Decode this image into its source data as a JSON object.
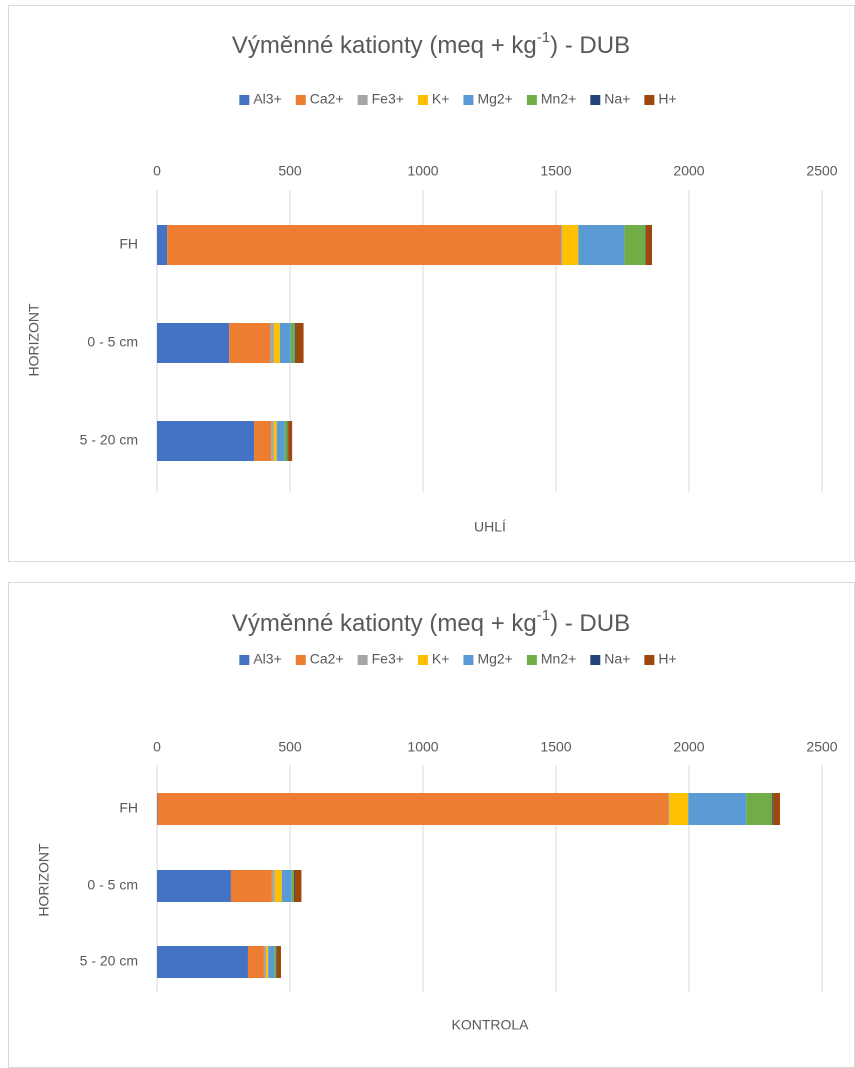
{
  "chart_data": [
    {
      "type": "stacked-bar-horizontal",
      "title": [
        "Výměnné kationty (meq + kg",
        "-1",
        ") - DUB"
      ],
      "x_label": "UHLÍ",
      "y_label": "HORIZONT",
      "categories": [
        "FH",
        "0 - 5 cm",
        "5 - 20 cm"
      ],
      "xlim": [
        0,
        2500
      ],
      "xticks": [
        0,
        500,
        1000,
        1500,
        2000,
        2500
      ],
      "grid": true,
      "legend": "top",
      "series": [
        {
          "name": "Al3+",
          "color": "#4472c4",
          "values": [
            38,
            271,
            365
          ]
        },
        {
          "name": "Ca2+",
          "color": "#ed7d31",
          "values": [
            1481,
            154,
            64
          ]
        },
        {
          "name": "Fe3+",
          "color": "#a5a5a5",
          "values": [
            5,
            15,
            10
          ]
        },
        {
          "name": "K+",
          "color": "#ffc000",
          "values": [
            60,
            22,
            11
          ]
        },
        {
          "name": "Mg2+",
          "color": "#5b9bd5",
          "values": [
            173,
            41,
            30
          ]
        },
        {
          "name": "Mn2+",
          "color": "#70ad47",
          "values": [
            79,
            15,
            11
          ]
        },
        {
          "name": "Na+",
          "color": "#264478",
          "values": [
            2,
            3,
            2
          ]
        },
        {
          "name": "H+",
          "color": "#9e480e",
          "values": [
            23,
            30,
            15
          ]
        }
      ]
    },
    {
      "type": "stacked-bar-horizontal",
      "title": [
        "Výměnné kationty (meq + kg",
        "-1",
        ") - DUB"
      ],
      "x_label": "KONTROLA",
      "y_label": "HORIZONT",
      "categories": [
        "FH",
        "0 - 5 cm",
        "5 - 20 cm"
      ],
      "xlim": [
        0,
        2500
      ],
      "xticks": [
        0,
        500,
        1000,
        1500,
        2000,
        2500
      ],
      "grid": true,
      "legend": "top",
      "series": [
        {
          "name": "Al3+",
          "color": "#4472c4",
          "values": [
            2,
            278,
            342
          ]
        },
        {
          "name": "Ca2+",
          "color": "#ed7d31",
          "values": [
            1921,
            154,
            60
          ]
        },
        {
          "name": "Fe3+",
          "color": "#a5a5a5",
          "values": [
            3,
            11,
            8
          ]
        },
        {
          "name": "K+",
          "color": "#ffc000",
          "values": [
            71,
            26,
            8
          ]
        },
        {
          "name": "Mg2+",
          "color": "#5b9bd5",
          "values": [
            218,
            38,
            23
          ]
        },
        {
          "name": "Mn2+",
          "color": "#70ad47",
          "values": [
            98,
            8,
            8
          ]
        },
        {
          "name": "Na+",
          "color": "#264478",
          "values": [
            3,
            2,
            2
          ]
        },
        {
          "name": "H+",
          "color": "#9e480e",
          "values": [
            26,
            26,
            15
          ]
        }
      ]
    }
  ]
}
